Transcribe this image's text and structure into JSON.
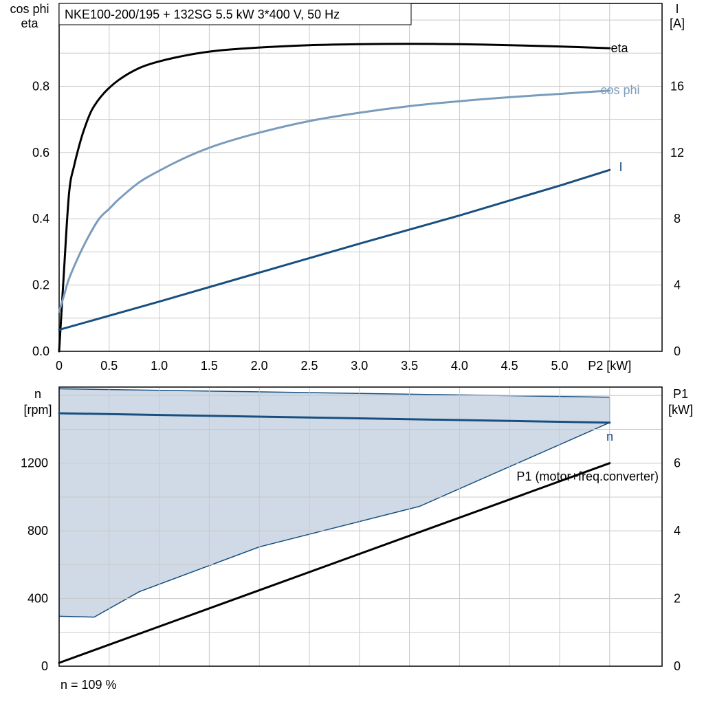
{
  "title": "NKE100-200/195 + 132SG   5.5 kW   3*400 V, 50 Hz",
  "footer": "n = 109 %",
  "colors": {
    "eta": "#000000",
    "cos_phi": "#7a9cbc",
    "current": "#184f80",
    "speed": "#184f80",
    "area_fill": "#d0dae6",
    "power": "#000000"
  },
  "chart_data": [
    {
      "type": "line",
      "xlabel": "P2 [kW]",
      "ylabel_left": "cos phi\neta",
      "ylabel_right": "I\n[A]",
      "xlim": [
        0,
        6
      ],
      "ylim_left": [
        0,
        1.05
      ],
      "ylim_right": [
        0,
        21
      ],
      "x_ticks": [
        "0",
        "0.5",
        "1.0",
        "1.5",
        "2.0",
        "2.5",
        "3.0",
        "3.5",
        "4.0",
        "4.5",
        "5.0",
        "P2 [kW]"
      ],
      "y_ticks_left": [
        "0.0",
        "0.2",
        "0.4",
        "0.6",
        "0.8"
      ],
      "y_ticks_right": [
        "0",
        "4",
        "8",
        "12",
        "16"
      ],
      "grid": true,
      "series": [
        {
          "name": "eta",
          "axis": "left",
          "x": [
            0,
            0.05,
            0.1,
            0.15,
            0.2,
            0.25,
            0.33,
            0.45,
            0.6,
            0.8,
            1.0,
            1.3,
            1.6,
            2.0,
            2.5,
            3.0,
            3.5,
            4.0,
            4.5,
            5.0,
            5.5
          ],
          "y": [
            0,
            0.25,
            0.48,
            0.56,
            0.62,
            0.67,
            0.73,
            0.78,
            0.82,
            0.855,
            0.875,
            0.895,
            0.908,
            0.917,
            0.924,
            0.927,
            0.928,
            0.927,
            0.924,
            0.92,
            0.915
          ]
        },
        {
          "name": "cos phi",
          "axis": "left",
          "x": [
            0,
            0.05,
            0.1,
            0.2,
            0.3,
            0.4,
            0.5,
            0.6,
            0.8,
            1.0,
            1.3,
            1.6,
            2.0,
            2.5,
            3.0,
            3.5,
            4.0,
            4.5,
            5.0,
            5.5
          ],
          "y": [
            0.12,
            0.17,
            0.22,
            0.29,
            0.35,
            0.4,
            0.43,
            0.46,
            0.51,
            0.545,
            0.59,
            0.625,
            0.66,
            0.695,
            0.72,
            0.74,
            0.755,
            0.767,
            0.777,
            0.787
          ]
        },
        {
          "name": "I",
          "axis": "right",
          "x": [
            0,
            1,
            2,
            3,
            4,
            5,
            5.5
          ],
          "y": [
            1.3,
            3.0,
            4.75,
            6.5,
            8.2,
            10.0,
            10.95
          ]
        }
      ]
    },
    {
      "type": "line",
      "xlabel": "",
      "ylabel_left": "n\n[rpm]",
      "ylabel_right": "P1\n[kW]",
      "xlim": [
        0,
        6
      ],
      "ylim_left": [
        0,
        1650
      ],
      "ylim_right": [
        0,
        8.25
      ],
      "y_ticks_left": [
        "0",
        "400",
        "800",
        "1200"
      ],
      "y_ticks_right": [
        "0",
        "2",
        "4",
        "6"
      ],
      "grid": true,
      "series": [
        {
          "name": "n",
          "axis": "left",
          "x": [
            0,
            5.5
          ],
          "y": [
            1495,
            1440
          ]
        },
        {
          "name": "P1 (motor+freq.converter)",
          "axis": "right",
          "x": [
            0,
            5.5
          ],
          "y": [
            0.1,
            6.0
          ]
        }
      ],
      "area": {
        "upper": {
          "x": [
            0,
            5.5
          ],
          "y": [
            1640,
            1590
          ]
        },
        "lower": {
          "x": [
            0,
            0.35,
            0.8,
            2.0,
            3.6,
            5.5
          ],
          "y": [
            295,
            290,
            440,
            705,
            945,
            1440
          ]
        }
      }
    }
  ]
}
